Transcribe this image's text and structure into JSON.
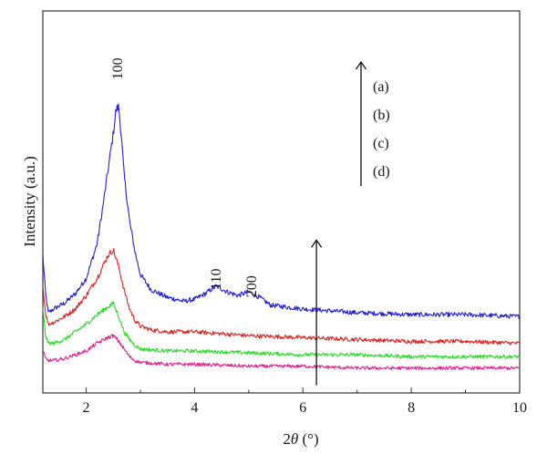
{
  "chart_data": {
    "type": "line",
    "title": "",
    "xlabel": "2θ (°)",
    "xlabel_parts": {
      "var": "θ",
      "prefix": "2",
      "unit": " (°)"
    },
    "ylabel": "Intensity (a.u.)",
    "xlim": [
      1.2,
      10
    ],
    "ylim": [
      0,
      100
    ],
    "xticks": [
      2,
      4,
      6,
      8,
      10
    ],
    "x_tick_labels": [
      "2",
      "4",
      "6",
      "8",
      "10"
    ],
    "y_ticks_shown": false,
    "grid": false,
    "legend": {
      "placement": "top-right",
      "entries": [
        "(a)",
        "(b)",
        "(c)",
        "(d)"
      ],
      "arrow": "up"
    },
    "peak_labels": [
      {
        "text": "100",
        "x": 2.58,
        "y": 82
      },
      {
        "text": "110",
        "x": 4.4,
        "y": 27
      },
      {
        "text": "200",
        "x": 5.05,
        "y": 25
      }
    ],
    "arrow_annotation": {
      "x": 6.25,
      "y_from": 2,
      "y_to": 40
    },
    "series": [
      {
        "color": "#1f1fd6",
        "x": [
          1.2,
          1.25,
          1.3,
          1.4,
          1.6,
          1.8,
          2.0,
          2.2,
          2.3,
          2.4,
          2.5,
          2.55,
          2.6,
          2.65,
          2.7,
          2.8,
          2.9,
          3.0,
          3.2,
          3.5,
          3.8,
          4.0,
          4.2,
          4.4,
          4.6,
          4.8,
          5.0,
          5.2,
          5.4,
          5.7,
          6.0,
          6.5,
          7.0,
          8.0,
          9.0,
          10.0
        ],
        "y": [
          36,
          26,
          21,
          22,
          23.5,
          26,
          30,
          39,
          48,
          58,
          68,
          74,
          75,
          67,
          57,
          45,
          37,
          31,
          27,
          25,
          24,
          24.5,
          26,
          28,
          26.5,
          25.5,
          26.5,
          25,
          23,
          22.5,
          22,
          21.5,
          21,
          20.5,
          20.5,
          20
        ]
      },
      {
        "color": "#e02020",
        "x": [
          1.2,
          1.25,
          1.3,
          1.4,
          1.6,
          1.8,
          2.0,
          2.2,
          2.3,
          2.4,
          2.5,
          2.6,
          2.7,
          2.8,
          2.9,
          3.0,
          3.2,
          3.5,
          4.0,
          4.5,
          5.0,
          6.0,
          7.0,
          8.0,
          9.0,
          10.0
        ],
        "y": [
          28,
          21,
          18,
          18.5,
          20,
          22,
          25.5,
          30,
          33,
          36,
          37.5,
          33,
          27,
          22,
          19,
          17.5,
          16.5,
          16,
          16,
          15.5,
          15,
          14.5,
          14,
          13.5,
          13.5,
          13
        ]
      },
      {
        "color": "#22dd22",
        "x": [
          1.2,
          1.25,
          1.3,
          1.4,
          1.6,
          1.8,
          2.0,
          2.2,
          2.4,
          2.5,
          2.6,
          2.7,
          2.8,
          2.9,
          3.0,
          3.5,
          4.0,
          5.0,
          6.0,
          7.0,
          8.0,
          9.0,
          10.0
        ],
        "y": [
          22,
          15,
          13,
          13,
          14,
          16,
          18,
          20.5,
          22.5,
          23.5,
          20,
          16,
          14,
          12.5,
          11.5,
          11,
          11,
          10.5,
          10,
          10,
          9.5,
          9.5,
          9.5
        ]
      },
      {
        "color": "#e0208a",
        "x": [
          1.2,
          1.25,
          1.3,
          1.4,
          1.6,
          1.8,
          2.0,
          2.2,
          2.4,
          2.5,
          2.6,
          2.7,
          2.8,
          2.9,
          3.0,
          3.5,
          4.0,
          5.0,
          6.0,
          7.0,
          8.0,
          9.0,
          10.0
        ],
        "y": [
          11,
          9,
          8.5,
          8.5,
          9,
          10,
          11,
          13,
          14.5,
          15,
          13.5,
          11.5,
          9.5,
          8.5,
          8,
          7.5,
          7.5,
          7,
          7,
          6.5,
          6.5,
          6.5,
          6.5
        ]
      }
    ]
  }
}
